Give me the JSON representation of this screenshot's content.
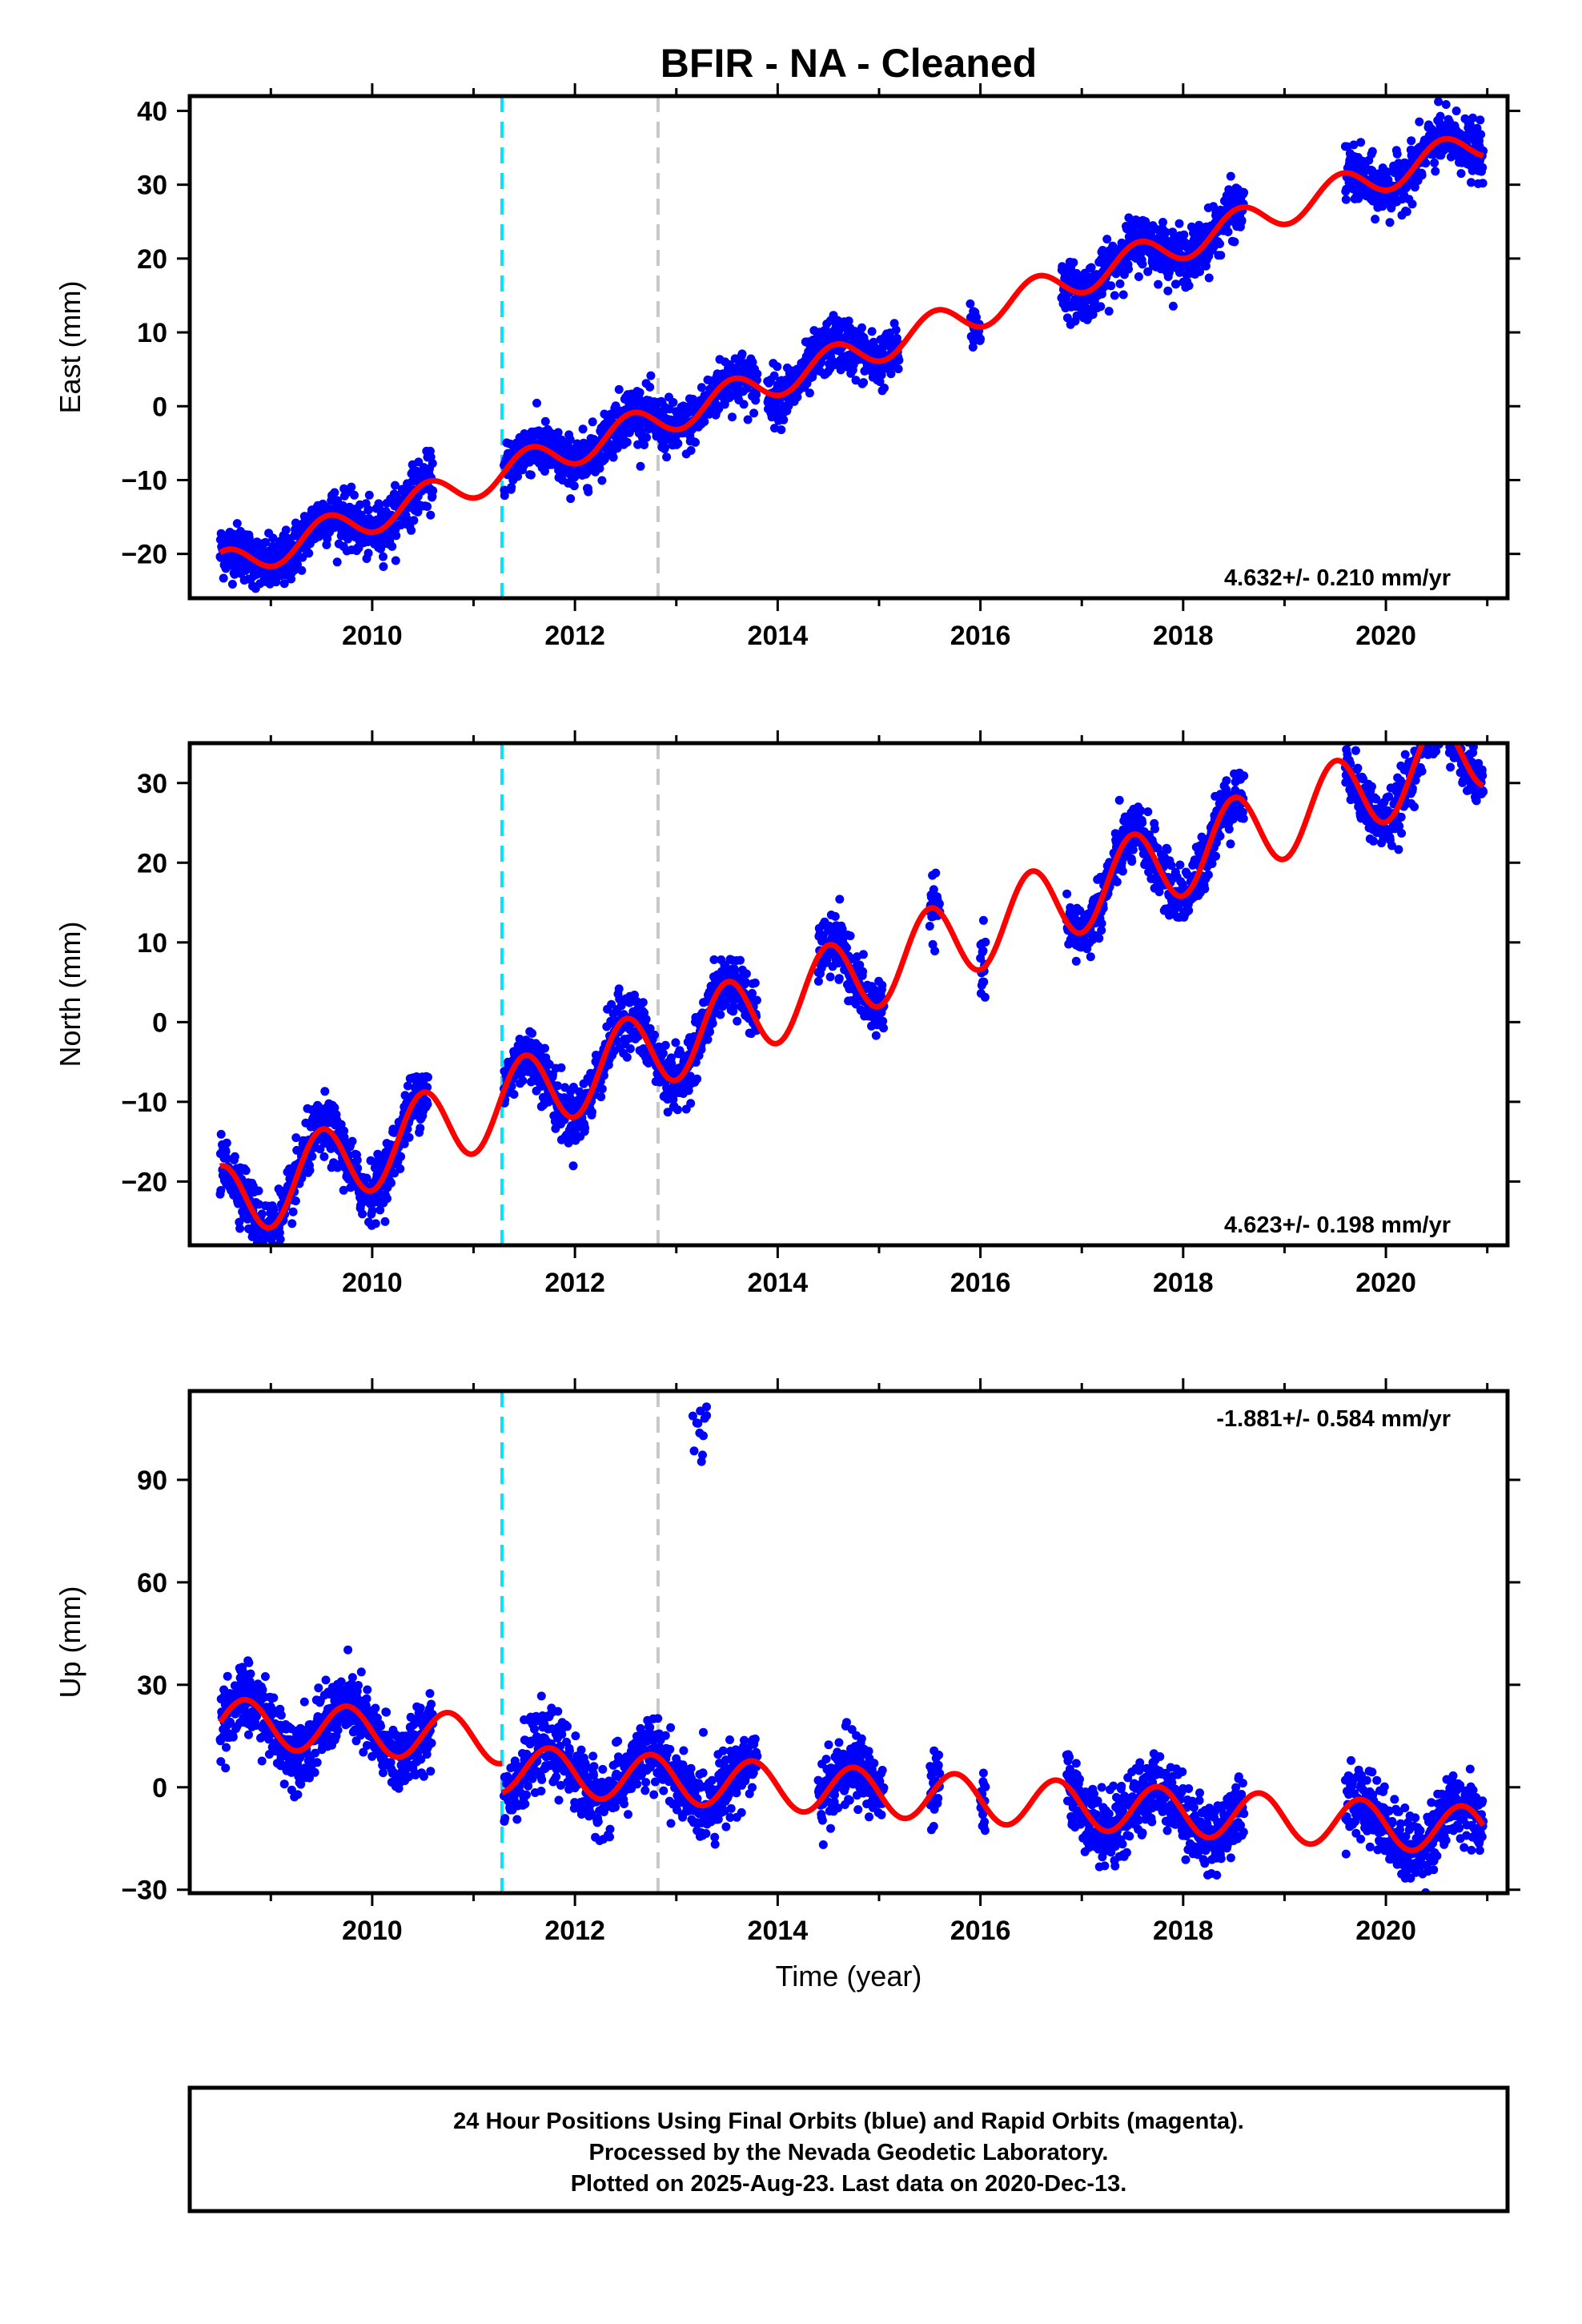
{
  "title": "BFIR  - NA - Cleaned",
  "colors": {
    "final_orbits": "#0000ff",
    "model": "#ff0000",
    "equipment_change": "#00e5ff",
    "earthquake": "#c8c8c8"
  },
  "footer": {
    "line1": "24 Hour Positions Using Final Orbits (blue) and Rapid Orbits (magenta).",
    "line2": "Processed by the Nevada Geodetic Laboratory.",
    "line3": "Plotted on 2025-Aug-23. Last data on 2020-Dec-13."
  },
  "chart_data": [
    {
      "type": "scatter",
      "ylabel": "East (mm)",
      "rate_label": "4.632+/- 0.210 mm/yr",
      "xlim": [
        2008.2,
        2021.2
      ],
      "ylim": [
        -26,
        42
      ],
      "xticks": [
        "2010",
        "2012",
        "2014",
        "2016",
        "2018",
        "2020"
      ],
      "yticks": [
        "−20",
        "−10",
        "0",
        "10",
        "20",
        "30",
        "40"
      ],
      "vlines": {
        "equipment_change": 2011.28,
        "earthquake": 2012.82
      },
      "model": {
        "segments": [
          {
            "from": 2008.5,
            "to": 2011.28,
            "intercept": -2.0,
            "rate": 4.632,
            "amp": 2.2,
            "phase_year": 2008.3
          },
          {
            "from": 2011.28,
            "to": 2020.96,
            "intercept": -2.0,
            "rate": 4.632,
            "amp": 2.2,
            "phase_year": 2008.3
          }
        ]
      },
      "series": [
        {
          "spans": [
            [
              2008.5,
              2010.6
            ],
            [
              2011.3,
              2013.8
            ],
            [
              2013.9,
              2015.2
            ],
            [
              2015.9,
              2016.0
            ],
            [
              2016.8,
              2018.6
            ],
            [
              2019.6,
              2020.96
            ]
          ],
          "scatter": 1.8
        }
      ]
    },
    {
      "type": "scatter",
      "ylabel": "North (mm)",
      "rate_label": "4.623+/- 0.198 mm/yr",
      "xlim": [
        2008.2,
        2021.2
      ],
      "ylim": [
        -28,
        35
      ],
      "xticks": [
        "2010",
        "2012",
        "2014",
        "2016",
        "2018",
        "2020"
      ],
      "yticks": [
        "−20",
        "−10",
        "0",
        "10",
        "20",
        "30"
      ],
      "vlines": {
        "equipment_change": 2011.28,
        "earthquake": 2012.82
      },
      "model": {
        "segments": [
          {
            "from": 2008.5,
            "to": 2011.28,
            "intercept": -3.2,
            "rate": 4.623,
            "amp": 5.0,
            "phase_year": 2008.25
          },
          {
            "from": 2011.28,
            "to": 2012.82,
            "intercept": -3.2,
            "rate": 4.623,
            "amp": 5.0,
            "phase_year": 2008.25
          },
          {
            "from": 2012.82,
            "to": 2020.96,
            "intercept": -3.2,
            "rate": 4.623,
            "amp": 5.0,
            "phase_year": 2008.25
          }
        ]
      },
      "series": [
        {
          "spans": [
            [
              2008.5,
              2010.55
            ],
            [
              2011.3,
              2013.8
            ],
            [
              2014.4,
              2015.05
            ],
            [
              2015.5,
              2015.6
            ],
            [
              2016.0,
              2016.05
            ],
            [
              2016.85,
              2018.6
            ],
            [
              2019.6,
              2020.96
            ]
          ],
          "scatter": 1.8
        }
      ]
    },
    {
      "type": "scatter",
      "ylabel": "Up (mm)",
      "rate_label": "-1.881+/- 0.584 mm/yr",
      "xlabel": "Time (year)",
      "xlim": [
        2008.2,
        2021.2
      ],
      "ylim": [
        -31,
        116
      ],
      "xticks": [
        "2010",
        "2012",
        "2014",
        "2016",
        "2018",
        "2020"
      ],
      "yticks": [
        "−30",
        "0",
        "30",
        "60",
        "90"
      ],
      "vlines": {
        "equipment_change": 2011.28,
        "earthquake": 2012.82
      },
      "model": {
        "segments": [
          {
            "from": 2008.5,
            "to": 2011.28,
            "intercept": 11.0,
            "rate": -1.881,
            "amp": 7.0,
            "phase_year": 2008.5
          },
          {
            "from": 2011.28,
            "to": 2020.96,
            "intercept": 2.5,
            "rate": -1.881,
            "amp": 7.0,
            "phase_year": 2008.5
          }
        ]
      },
      "series": [
        {
          "spans": [
            [
              2008.5,
              2010.6
            ],
            [
              2011.3,
              2013.8
            ],
            [
              2014.4,
              2015.05
            ],
            [
              2015.5,
              2015.6
            ],
            [
              2016.0,
              2016.05
            ],
            [
              2016.85,
              2018.6
            ],
            [
              2019.6,
              2020.96
            ]
          ],
          "scatter": 5.0
        }
      ],
      "outliers": {
        "x_from": 2013.15,
        "x_to": 2013.3,
        "y_from": 93,
        "y_to": 112,
        "n": 12
      }
    }
  ]
}
